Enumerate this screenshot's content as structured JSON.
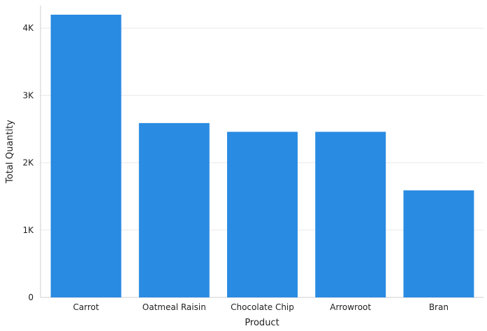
{
  "chart_data": {
    "type": "bar",
    "title": "",
    "xlabel": "Product",
    "ylabel": "Total Quantity",
    "categories": [
      "Carrot",
      "Oatmeal Raisin",
      "Chocolate Chip",
      "Arrowroot",
      "Bran"
    ],
    "series": [
      {
        "values": [
          4200,
          2590,
          2460,
          2460,
          1590
        ]
      }
    ],
    "ylim": [
      0,
      4200
    ],
    "yticks": [
      0,
      1000,
      2000,
      3000,
      4000
    ],
    "ytick_labels": [
      "0",
      "1K",
      "2K",
      "3K",
      "4K"
    ],
    "grid": "horizontal",
    "legend": "none",
    "colors": {
      "bar": "#2a8be2",
      "grid": "#e9e9e9",
      "axis": "#cfcfcf"
    }
  }
}
